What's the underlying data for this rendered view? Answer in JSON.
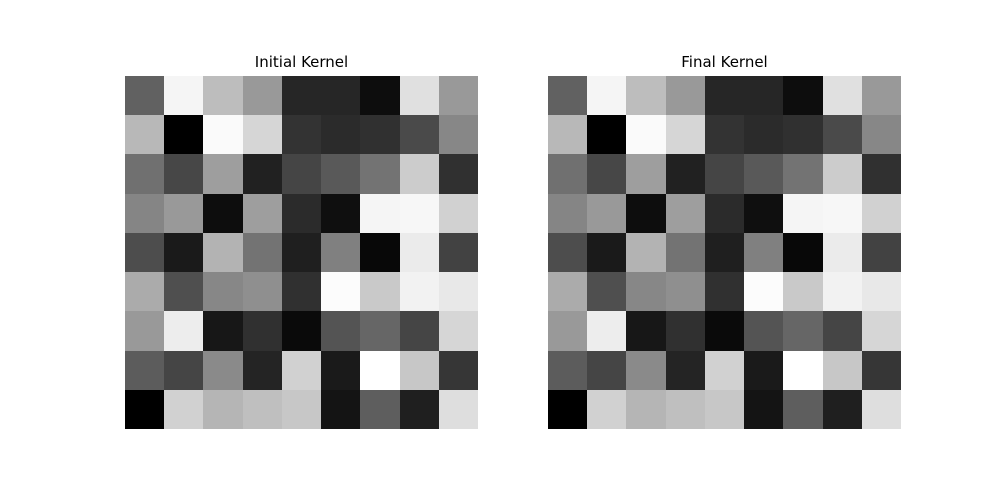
{
  "chart_data": [
    {
      "type": "heatmap",
      "title": "Initial Kernel",
      "colormap": "gray",
      "rows": 9,
      "cols": 9,
      "values": [
        [
          0.38,
          0.96,
          0.74,
          0.6,
          0.15,
          0.15,
          0.05,
          0.88,
          0.6
        ],
        [
          0.72,
          0.0,
          0.98,
          0.84,
          0.2,
          0.17,
          0.19,
          0.29,
          0.53
        ],
        [
          0.44,
          0.28,
          0.62,
          0.13,
          0.27,
          0.35,
          0.45,
          0.8,
          0.19
        ],
        [
          0.52,
          0.6,
          0.05,
          0.62,
          0.17,
          0.06,
          0.96,
          0.97,
          0.82
        ],
        [
          0.3,
          0.1,
          0.7,
          0.45,
          0.12,
          0.5,
          0.03,
          0.92,
          0.26
        ],
        [
          0.67,
          0.31,
          0.53,
          0.56,
          0.19,
          0.99,
          0.79,
          0.95,
          0.91
        ],
        [
          0.6,
          0.93,
          0.09,
          0.19,
          0.04,
          0.33,
          0.4,
          0.27,
          0.84
        ],
        [
          0.36,
          0.27,
          0.54,
          0.14,
          0.82,
          0.1,
          1.0,
          0.78,
          0.21
        ],
        [
          0.0,
          0.82,
          0.71,
          0.75,
          0.78,
          0.08,
          0.37,
          0.12,
          0.87
        ]
      ]
    },
    {
      "type": "heatmap",
      "title": "Final Kernel",
      "colormap": "gray",
      "rows": 9,
      "cols": 9,
      "values": [
        [
          0.38,
          0.96,
          0.74,
          0.6,
          0.15,
          0.15,
          0.05,
          0.88,
          0.6
        ],
        [
          0.72,
          0.0,
          0.98,
          0.84,
          0.2,
          0.17,
          0.19,
          0.29,
          0.53
        ],
        [
          0.44,
          0.28,
          0.62,
          0.13,
          0.27,
          0.35,
          0.45,
          0.8,
          0.19
        ],
        [
          0.52,
          0.6,
          0.05,
          0.62,
          0.17,
          0.06,
          0.96,
          0.97,
          0.82
        ],
        [
          0.3,
          0.1,
          0.7,
          0.45,
          0.12,
          0.5,
          0.03,
          0.92,
          0.26
        ],
        [
          0.67,
          0.31,
          0.53,
          0.56,
          0.19,
          0.99,
          0.79,
          0.95,
          0.91
        ],
        [
          0.6,
          0.93,
          0.09,
          0.19,
          0.04,
          0.33,
          0.4,
          0.27,
          0.84
        ],
        [
          0.36,
          0.27,
          0.54,
          0.14,
          0.82,
          0.1,
          1.0,
          0.78,
          0.21
        ],
        [
          0.0,
          0.82,
          0.71,
          0.75,
          0.78,
          0.08,
          0.37,
          0.12,
          0.87
        ]
      ]
    }
  ]
}
